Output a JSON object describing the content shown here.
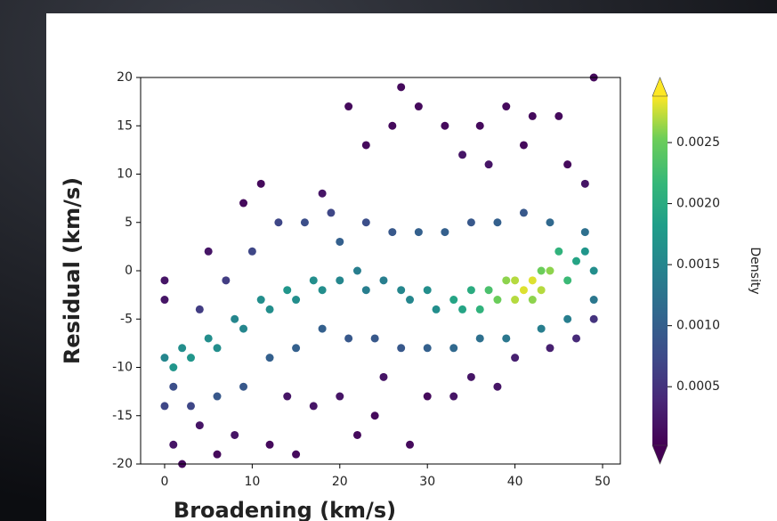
{
  "chart_data": {
    "type": "density-scatter",
    "x_label": "Broadening (km/s)",
    "y_label": "Residual (km/s)",
    "colorbar_label": "Density",
    "xlim": [
      -2.74,
      52.03
    ],
    "ylim": [
      -20,
      20
    ],
    "xticks": [
      0,
      10,
      20,
      30,
      40,
      50
    ],
    "yticks": [
      -20,
      -15,
      -10,
      -5,
      0,
      5,
      10,
      15,
      20
    ],
    "clim": [
      2e-05,
      0.00288
    ],
    "cticks": [
      0.0005,
      {
        "value": 0.001,
        "label": "0.0010"
      },
      0.0015,
      {
        "value": 0.002,
        "label": "0.0020"
      },
      0.0025
    ],
    "colormap": "viridis",
    "x": [
      0,
      0,
      1,
      2,
      4,
      5,
      6,
      8,
      9,
      11,
      12,
      14,
      15,
      17,
      18,
      20,
      21,
      22,
      23,
      24,
      25,
      26,
      27,
      28,
      29,
      30,
      32,
      33,
      34,
      35,
      36,
      37,
      38,
      39,
      40,
      41,
      42,
      44,
      45,
      46,
      47,
      48,
      49,
      49,
      0,
      1,
      3,
      4,
      6,
      7,
      9,
      10,
      12,
      13,
      15,
      16,
      18,
      19,
      20,
      21,
      23,
      24,
      26,
      27,
      29,
      30,
      32,
      33,
      35,
      36,
      38,
      39,
      41,
      43,
      44,
      46,
      48,
      49,
      0,
      1,
      2,
      3,
      5,
      6,
      8,
      9,
      11,
      12,
      14,
      15,
      17,
      18,
      20,
      22,
      23,
      25,
      27,
      28,
      30,
      31,
      33,
      34,
      35,
      36,
      37,
      45,
      46,
      47,
      48,
      49,
      38,
      39,
      40,
      41,
      42,
      43,
      44,
      42,
      40,
      43
    ],
    "y": [
      -1,
      -3,
      -18,
      -20,
      -16,
      2,
      -19,
      -17,
      7,
      9,
      -18,
      -13,
      -19,
      -14,
      8,
      -13,
      17,
      -17,
      13,
      -15,
      -11,
      15,
      19,
      -18,
      17,
      -13,
      15,
      -13,
      12,
      -11,
      15,
      11,
      -12,
      17,
      -9,
      13,
      16,
      -8,
      16,
      11,
      -7,
      9,
      20,
      -5,
      -14,
      -12,
      -14,
      -4,
      -13,
      -1,
      -12,
      2,
      -9,
      5,
      -8,
      5,
      -6,
      6,
      3,
      -7,
      5,
      -7,
      4,
      -8,
      4,
      -8,
      4,
      -8,
      5,
      -7,
      5,
      -7,
      6,
      -6,
      5,
      -5,
      4,
      -3,
      -9,
      -10,
      -8,
      -9,
      -7,
      -8,
      -5,
      -6,
      -3,
      -4,
      -2,
      -3,
      -1,
      -2,
      -1,
      0,
      -2,
      -1,
      -2,
      -3,
      -2,
      -4,
      -3,
      -4,
      -2,
      -4,
      -2,
      2,
      -1,
      1,
      2,
      0,
      -3,
      -1,
      -3,
      -2,
      -1,
      -2,
      0,
      -3,
      -1,
      0
    ],
    "density": [
      0.0002,
      0.0002,
      0.0002,
      0.0001,
      0.0002,
      0.0002,
      0.0001,
      0.0002,
      0.0001,
      0.0001,
      0.0001,
      0.0002,
      0.0001,
      0.0002,
      0.0002,
      0.0002,
      0.0001,
      0.0001,
      0.0001,
      0.0001,
      0.0002,
      0.0001,
      0.0001,
      0.0001,
      0.0001,
      0.0001,
      0.0001,
      0.0002,
      0.0002,
      0.0002,
      0.0001,
      0.0002,
      0.0002,
      0.0001,
      0.0003,
      0.0001,
      0.0001,
      0.0003,
      0.0001,
      0.0001,
      0.0004,
      0.0002,
      0.0001,
      0.0005,
      0.0007,
      0.0008,
      0.0007,
      0.0006,
      0.0009,
      0.0006,
      0.0009,
      0.0007,
      0.001,
      0.0007,
      0.001,
      0.0008,
      0.001,
      0.0007,
      0.001,
      0.0009,
      0.0008,
      0.0009,
      0.0009,
      0.0009,
      0.001,
      0.001,
      0.001,
      0.0011,
      0.0009,
      0.0012,
      0.001,
      0.0013,
      0.0009,
      0.0014,
      0.0011,
      0.0014,
      0.0012,
      0.0013,
      0.0015,
      0.0017,
      0.0016,
      0.0017,
      0.0016,
      0.0016,
      0.0015,
      0.0015,
      0.0016,
      0.0016,
      0.0017,
      0.0016,
      0.0016,
      0.0016,
      0.0015,
      0.0014,
      0.0014,
      0.0014,
      0.0015,
      0.0015,
      0.0016,
      0.0016,
      0.0019,
      0.0019,
      0.002,
      0.0021,
      0.0023,
      0.0021,
      0.0022,
      0.0019,
      0.0017,
      0.0016,
      0.0025,
      0.0026,
      0.0027,
      0.0028,
      0.0028,
      0.0027,
      0.0026,
      0.0026,
      0.0027,
      0.0025
    ]
  }
}
